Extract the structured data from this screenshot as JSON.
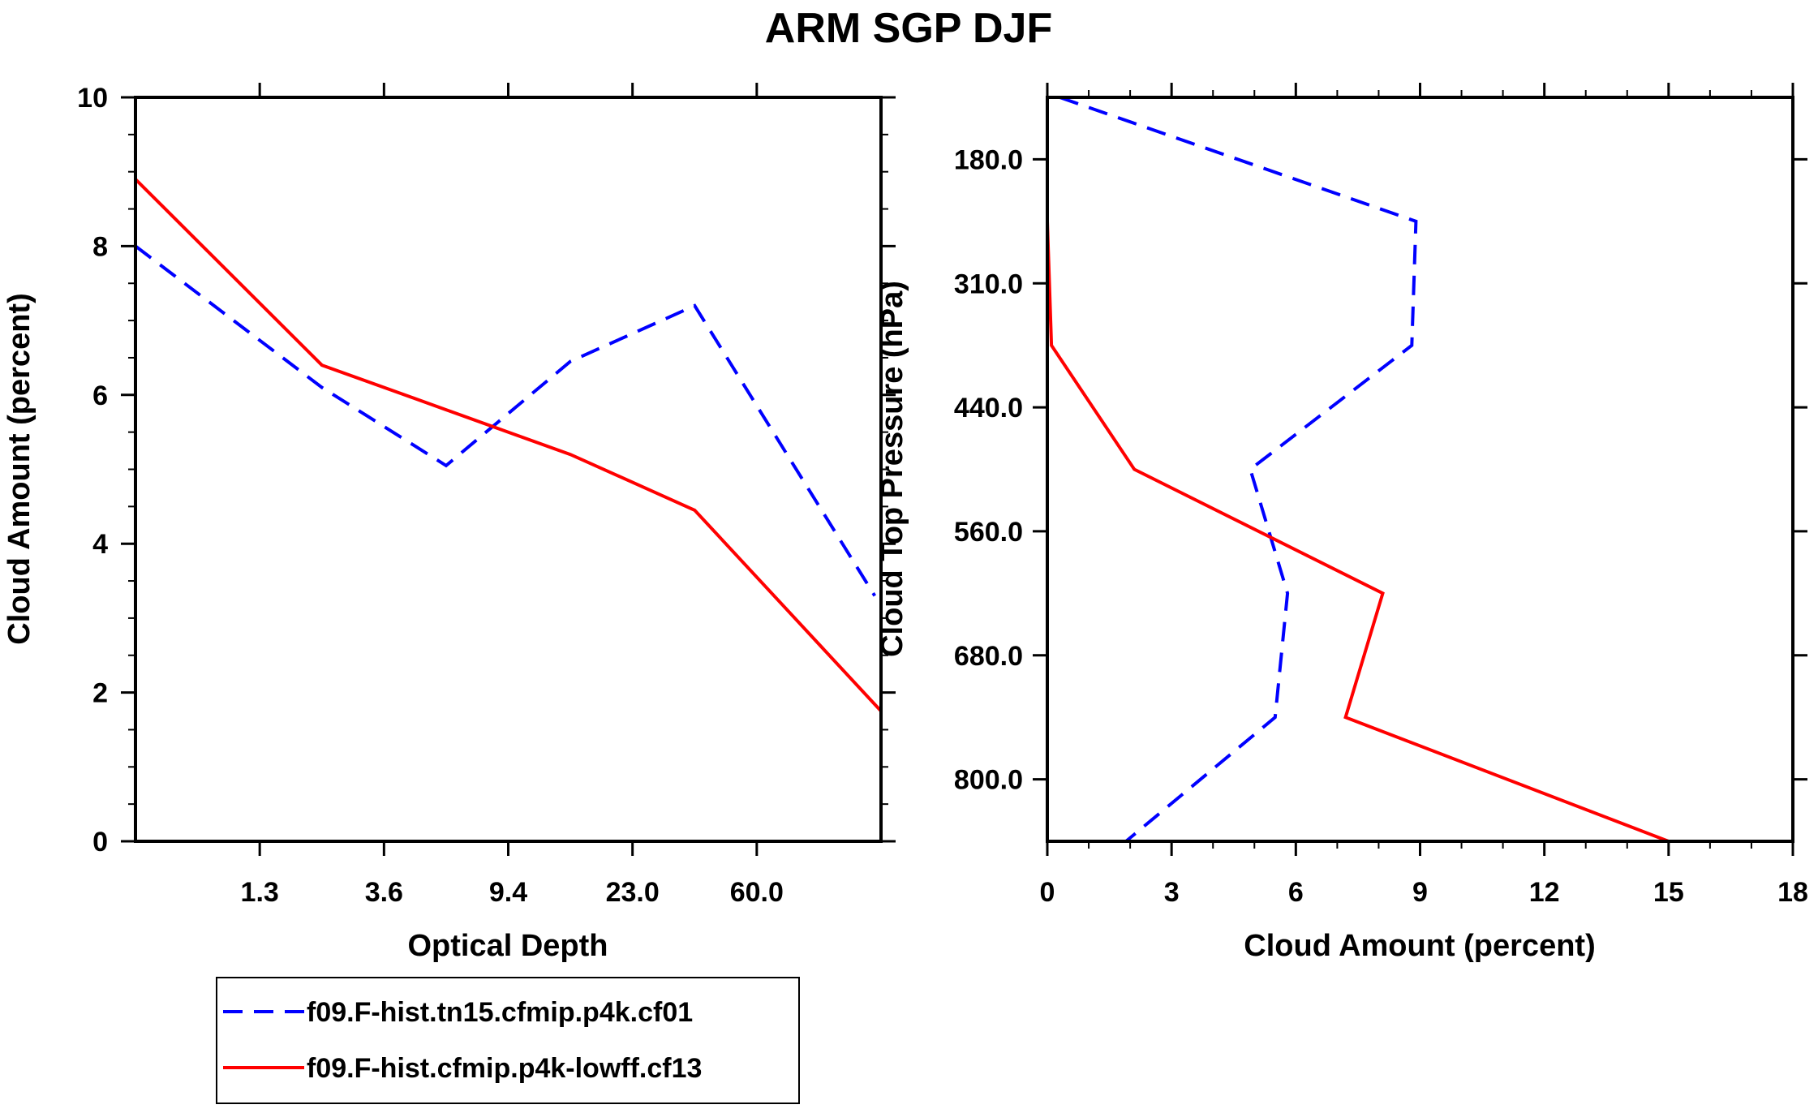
{
  "title": "ARM SGP DJF",
  "chart_data": [
    {
      "type": "line",
      "xlabel": "Optical Depth",
      "ylabel": "Cloud Amount (percent)",
      "x_tick_labels": [
        "1.3",
        "3.6",
        "9.4",
        "23.0",
        "60.0"
      ],
      "x_positions": [
        1,
        2,
        3,
        4,
        5
      ],
      "xlim": [
        0,
        6
      ],
      "y_ticks": [
        "0",
        "2",
        "4",
        "6",
        "8",
        "10"
      ],
      "ylim": [
        0,
        10
      ],
      "series": [
        {
          "name": "f09.F-hist.tn15.cfmip.p4k.cf01",
          "color": "#0000ff",
          "dash": true,
          "x": [
            0,
            1.5,
            2.5,
            3.5,
            4.5,
            5.95
          ],
          "y": [
            8.0,
            6.1,
            5.05,
            6.45,
            7.2,
            3.3
          ]
        },
        {
          "name": "f09.F-hist.cfmip.p4k-lowff.cf13",
          "color": "#ff0000",
          "dash": false,
          "x": [
            0,
            1.5,
            2.5,
            3.5,
            4.5,
            6.0
          ],
          "y": [
            8.9,
            6.4,
            5.8,
            5.2,
            4.45,
            1.75
          ]
        }
      ]
    },
    {
      "type": "line",
      "xlabel": "Cloud Amount (percent)",
      "ylabel": "Cloud Top Pressure (hPa)",
      "x_ticks": [
        "0",
        "3",
        "6",
        "9",
        "12",
        "15",
        "18"
      ],
      "xlim": [
        0,
        18
      ],
      "y_tick_labels": [
        "180.0",
        "310.0",
        "440.0",
        "560.0",
        "680.0",
        "800.0"
      ],
      "y_positions": [
        0.5,
        1.5,
        2.5,
        3.5,
        4.5,
        5.5
      ],
      "ylim": [
        0,
        6
      ],
      "series": [
        {
          "name": "f09.F-hist.tn15.cfmip.p4k.cf01",
          "color": "#0000ff",
          "dash": true,
          "x": [
            0.3,
            8.9,
            8.8,
            4.9,
            5.8,
            5.5,
            1.9
          ],
          "y": [
            0,
            1.0,
            2.0,
            3.0,
            4.0,
            5.0,
            6.0
          ]
        },
        {
          "name": "f09.F-hist.cfmip.p4k-lowff.cf13",
          "color": "#ff0000",
          "dash": false,
          "x": [
            0.0,
            0.0,
            0.1,
            2.1,
            8.1,
            7.2,
            15.0
          ],
          "y": [
            0,
            1.0,
            2.0,
            3.0,
            4.0,
            5.0,
            6.0
          ]
        }
      ]
    }
  ],
  "legend": {
    "entries": [
      {
        "label": "f09.F-hist.tn15.cfmip.p4k.cf01",
        "color": "#0000ff",
        "dash": true
      },
      {
        "label": "f09.F-hist.cfmip.p4k-lowff.cf13",
        "color": "#ff0000",
        "dash": false
      }
    ]
  }
}
